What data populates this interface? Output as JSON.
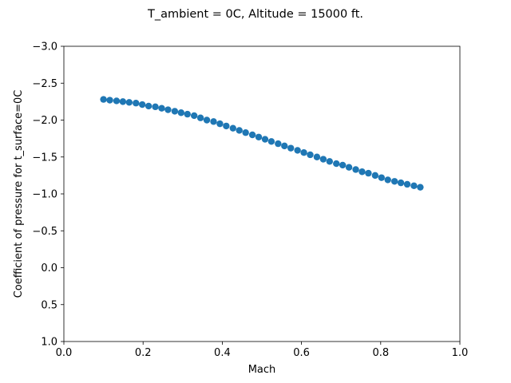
{
  "chart_data": {
    "type": "scatter",
    "title": "T_ambient = 0C, Altitude = 15000 ft.",
    "xlabel": "Mach",
    "ylabel": "Coefficient of pressure for t_surface=0C",
    "xlim": [
      0.0,
      1.0
    ],
    "ylim": [
      1.0,
      -3.0
    ],
    "y_inverted": true,
    "grid": false,
    "x_ticks": [
      "0.0",
      "0.2",
      "0.4",
      "0.6",
      "0.8",
      "1.0"
    ],
    "y_ticks": [
      "1.0",
      "0.5",
      "0.0",
      "−0.5",
      "−1.0",
      "−1.5",
      "−2.0",
      "−2.5",
      "−3.0"
    ],
    "marker_color": "#1f77b4",
    "series": [
      {
        "x": [
          0.1,
          0.116,
          0.133,
          0.149,
          0.165,
          0.182,
          0.198,
          0.214,
          0.231,
          0.247,
          0.263,
          0.28,
          0.296,
          0.312,
          0.329,
          0.345,
          0.361,
          0.378,
          0.394,
          0.41,
          0.427,
          0.443,
          0.459,
          0.476,
          0.492,
          0.508,
          0.524,
          0.541,
          0.557,
          0.573,
          0.59,
          0.606,
          0.622,
          0.639,
          0.655,
          0.671,
          0.688,
          0.704,
          0.72,
          0.737,
          0.753,
          0.769,
          0.786,
          0.802,
          0.818,
          0.835,
          0.851,
          0.867,
          0.884,
          0.9
        ],
        "y": [
          -2.28,
          -2.27,
          -2.26,
          -2.25,
          -2.24,
          -2.23,
          -2.21,
          -2.19,
          -2.18,
          -2.16,
          -2.14,
          -2.12,
          -2.1,
          -2.08,
          -2.06,
          -2.03,
          -2.0,
          -1.98,
          -1.95,
          -1.92,
          -1.89,
          -1.86,
          -1.83,
          -1.8,
          -1.77,
          -1.74,
          -1.71,
          -1.68,
          -1.65,
          -1.62,
          -1.59,
          -1.56,
          -1.53,
          -1.5,
          -1.47,
          -1.44,
          -1.41,
          -1.39,
          -1.36,
          -1.33,
          -1.3,
          -1.28,
          -1.25,
          -1.22,
          -1.19,
          -1.17,
          -1.15,
          -1.13,
          -1.11,
          -1.09
        ]
      }
    ]
  }
}
